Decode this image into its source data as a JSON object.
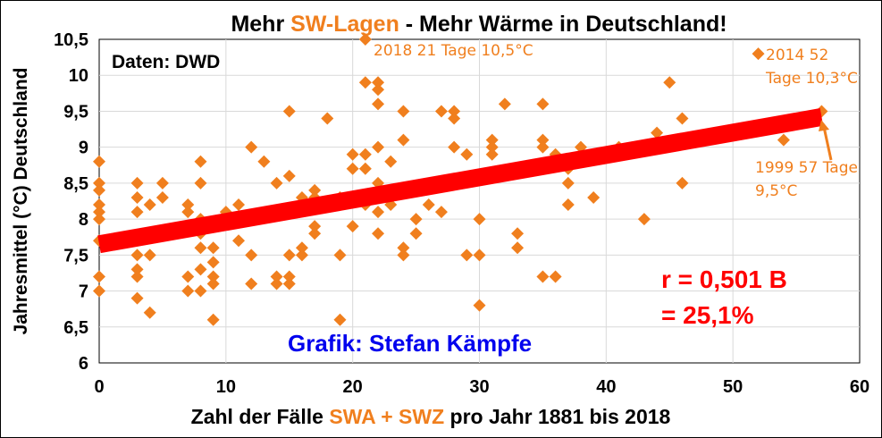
{
  "colors": {
    "points": "#f07f1e",
    "trend": "#ff0000",
    "accent": "#f07f1e",
    "credit": "#0000ee",
    "stat": "#ff0000",
    "text": "#000000"
  },
  "title": {
    "part1": "Mehr ",
    "highlight": "SW-Lagen",
    "part2": " - Mehr Wärme in Deutschland!"
  },
  "xaxis": {
    "part1": "Zahl der Fälle ",
    "highlight": "SWA + SWZ",
    "part2": " pro Jahr 1881 bis 2018"
  },
  "source": "Daten: DWD",
  "credit": "Grafik: Stefan Kämpfe",
  "stat": {
    "line1": "r = 0,501 B",
    "line2": "= 25,1%"
  },
  "annotations": {
    "a2018": "2018 21 Tage 10,5°C",
    "a2014_l1": "2014 52",
    "a2014_l2": "Tage 10,3°C",
    "a1999_l1": "1999 57 Tage",
    "a1999_l2": "9,5°C"
  },
  "chart_data": {
    "type": "scatter",
    "title": "Mehr SW-Lagen - Mehr Wärme in Deutschland!",
    "xlabel": "Zahl der Fälle SWA + SWZ pro Jahr 1881 bis 2018",
    "ylabel": "Jahresmittel (°C) Deutschland",
    "xlim": [
      0,
      60
    ],
    "ylim": [
      6,
      10.5
    ],
    "xticks": [
      0,
      10,
      20,
      30,
      40,
      50,
      60
    ],
    "yticks": [
      6,
      6.5,
      7,
      7.5,
      8,
      8.5,
      9,
      9.5,
      10,
      10.5
    ],
    "x_tick_labels": [
      "0",
      "10",
      "20",
      "30",
      "40",
      "50",
      "60"
    ],
    "y_tick_labels": [
      "6",
      "6,5",
      "7",
      "7,5",
      "8",
      "8,5",
      "9",
      "9,5",
      "10",
      "10,5"
    ],
    "trend": {
      "x": [
        0,
        57
      ],
      "y": [
        7.65,
        9.42
      ]
    },
    "points": [
      [
        0,
        8.8
      ],
      [
        0,
        8.5
      ],
      [
        0,
        8.4
      ],
      [
        0,
        8.2
      ],
      [
        0,
        8.1
      ],
      [
        0,
        8.0
      ],
      [
        0,
        7.7
      ],
      [
        0,
        7.2
      ],
      [
        0,
        7.0
      ],
      [
        3,
        8.5
      ],
      [
        3,
        8.3
      ],
      [
        3,
        8.1
      ],
      [
        3,
        7.5
      ],
      [
        3,
        7.3
      ],
      [
        3,
        7.2
      ],
      [
        3,
        6.9
      ],
      [
        4,
        8.2
      ],
      [
        4,
        7.5
      ],
      [
        4,
        6.7
      ],
      [
        5,
        8.5
      ],
      [
        5,
        8.3
      ],
      [
        7,
        8.2
      ],
      [
        7,
        8.1
      ],
      [
        7,
        7.9
      ],
      [
        7,
        7.2
      ],
      [
        7,
        7.0
      ],
      [
        8,
        8.8
      ],
      [
        8,
        8.5
      ],
      [
        8,
        8.0
      ],
      [
        8,
        7.8
      ],
      [
        8,
        7.6
      ],
      [
        8,
        7.3
      ],
      [
        8,
        7.0
      ],
      [
        9,
        7.6
      ],
      [
        9,
        7.4
      ],
      [
        9,
        7.2
      ],
      [
        9,
        7.1
      ],
      [
        9,
        6.6
      ],
      [
        10,
        8.1
      ],
      [
        11,
        8.2
      ],
      [
        11,
        7.7
      ],
      [
        12,
        9.0
      ],
      [
        12,
        7.5
      ],
      [
        12,
        7.1
      ],
      [
        13,
        8.8
      ],
      [
        14,
        8.5
      ],
      [
        14,
        7.2
      ],
      [
        14,
        7.1
      ],
      [
        15,
        9.5
      ],
      [
        15,
        8.6
      ],
      [
        15,
        7.5
      ],
      [
        15,
        7.2
      ],
      [
        15,
        7.1
      ],
      [
        16,
        8.3
      ],
      [
        16,
        7.6
      ],
      [
        16,
        7.5
      ],
      [
        17,
        8.4
      ],
      [
        17,
        8.3
      ],
      [
        17,
        7.9
      ],
      [
        17,
        7.8
      ],
      [
        18,
        9.4
      ],
      [
        19,
        8.3
      ],
      [
        19,
        7.5
      ],
      [
        19,
        6.6
      ],
      [
        20,
        8.9
      ],
      [
        20,
        8.7
      ],
      [
        20,
        7.9
      ],
      [
        21,
        10.5
      ],
      [
        21,
        9.9
      ],
      [
        21,
        8.9
      ],
      [
        21,
        8.7
      ],
      [
        21,
        8.2
      ],
      [
        22,
        9.9
      ],
      [
        22,
        9.8
      ],
      [
        22,
        9.6
      ],
      [
        22,
        9.0
      ],
      [
        22,
        8.5
      ],
      [
        22,
        8.3
      ],
      [
        22,
        8.1
      ],
      [
        22,
        7.8
      ],
      [
        23,
        8.8
      ],
      [
        23,
        8.2
      ],
      [
        24,
        9.5
      ],
      [
        24,
        9.1
      ],
      [
        24,
        7.6
      ],
      [
        24,
        7.5
      ],
      [
        25,
        8.0
      ],
      [
        25,
        7.8
      ],
      [
        26,
        8.2
      ],
      [
        27,
        9.5
      ],
      [
        27,
        8.1
      ],
      [
        28,
        9.5
      ],
      [
        28,
        9.4
      ],
      [
        28,
        9.0
      ],
      [
        29,
        8.9
      ],
      [
        29,
        7.5
      ],
      [
        30,
        8.0
      ],
      [
        30,
        7.5
      ],
      [
        30,
        6.8
      ],
      [
        31,
        9.1
      ],
      [
        31,
        9.0
      ],
      [
        31,
        8.9
      ],
      [
        32,
        9.6
      ],
      [
        33,
        7.8
      ],
      [
        33,
        7.6
      ],
      [
        35,
        9.6
      ],
      [
        35,
        9.1
      ],
      [
        35,
        9.0
      ],
      [
        35,
        7.2
      ],
      [
        36,
        8.9
      ],
      [
        36,
        7.2
      ],
      [
        37,
        8.7
      ],
      [
        37,
        8.5
      ],
      [
        37,
        8.2
      ],
      [
        38,
        9.0
      ],
      [
        39,
        8.3
      ],
      [
        41,
        9.0
      ],
      [
        43,
        8.0
      ],
      [
        44,
        9.2
      ],
      [
        45,
        9.9
      ],
      [
        46,
        9.4
      ],
      [
        46,
        8.5
      ],
      [
        52,
        10.3
      ],
      [
        54,
        9.1
      ],
      [
        57,
        9.5
      ]
    ]
  }
}
